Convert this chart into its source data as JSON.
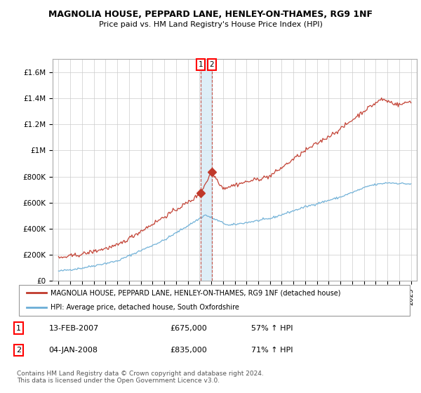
{
  "title": "MAGNOLIA HOUSE, PEPPARD LANE, HENLEY-ON-THAMES, RG9 1NF",
  "subtitle": "Price paid vs. HM Land Registry's House Price Index (HPI)",
  "legend_line1": "MAGNOLIA HOUSE, PEPPARD LANE, HENLEY-ON-THAMES, RG9 1NF (detached house)",
  "legend_line2": "HPI: Average price, detached house, South Oxfordshire",
  "sale1_label": "1",
  "sale1_date": "13-FEB-2007",
  "sale1_price": "£675,000",
  "sale1_hpi": "57% ↑ HPI",
  "sale2_label": "2",
  "sale2_date": "04-JAN-2008",
  "sale2_price": "£835,000",
  "sale2_hpi": "71% ↑ HPI",
  "footer": "Contains HM Land Registry data © Crown copyright and database right 2024.\nThis data is licensed under the Open Government Licence v3.0.",
  "hpi_color": "#6baed6",
  "price_color": "#c0392b",
  "sale_marker_color": "#c0392b",
  "vline_color": "#c0392b",
  "shade_color": "#d0e8f5",
  "ylim": [
    0,
    1700000
  ],
  "yticks": [
    0,
    200000,
    400000,
    600000,
    800000,
    1000000,
    1200000,
    1400000,
    1600000
  ],
  "ytick_labels": [
    "£0",
    "£200K",
    "£400K",
    "£600K",
    "£800K",
    "£1M",
    "£1.2M",
    "£1.4M",
    "£1.6M"
  ],
  "xtick_years": [
    1995,
    1996,
    1997,
    1998,
    1999,
    2000,
    2001,
    2002,
    2003,
    2004,
    2005,
    2006,
    2007,
    2008,
    2009,
    2010,
    2011,
    2012,
    2013,
    2014,
    2015,
    2016,
    2017,
    2018,
    2019,
    2020,
    2021,
    2022,
    2023,
    2024,
    2025
  ],
  "sale1_x": 2007.1,
  "sale2_x": 2008.04,
  "sale1_y": 675000,
  "sale2_y": 835000,
  "xlim_left": 1994.5,
  "xlim_right": 2025.5
}
